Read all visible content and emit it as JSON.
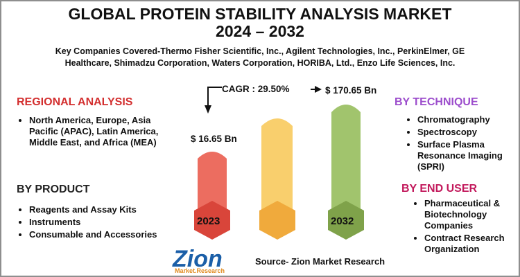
{
  "header": {
    "title_line1": "GLOBAL PROTEIN STABILITY ANALYSIS MARKET",
    "title_line2": "2024 – 2032",
    "companies_line1": "Key Companies Covered-Thermo Fisher Scientific, Inc., Agilent Technologies, Inc., PerkinElmer, GE",
    "companies_line2": "Healthcare, Shimadzu Corporation, Waters Corporation, HORIBA, Ltd., Enzo Life Sciences, Inc."
  },
  "regional": {
    "title": "REGIONAL ANALYSIS",
    "items": [
      "North America, Europe, Asia Pacific (APAC), Latin America, Middle East, and Africa (MEA)"
    ]
  },
  "product": {
    "title": "BY PRODUCT",
    "items": [
      "Reagents and Assay Kits",
      "Instruments",
      "Consumable and Accessories"
    ]
  },
  "technique": {
    "title": "BY TECHNIQUE",
    "items": [
      "Chromatography",
      "Spectroscopy",
      "Surface Plasma Resonance Imaging (SPRI)"
    ]
  },
  "end_user": {
    "title": "BY END USER",
    "items": [
      "Pharmaceutical & Biotechnology Companies",
      "Contract Research Organization"
    ]
  },
  "chart": {
    "cagr": "CAGR : 29.50%",
    "value_2023": "$ 16.65  Bn",
    "value_2032": "$ 170.65 Bn",
    "year_start": "2023",
    "year_end": "2032"
  },
  "logo": {
    "tagline": "Market.Research"
  },
  "source": "Source- Zion Market Research"
}
